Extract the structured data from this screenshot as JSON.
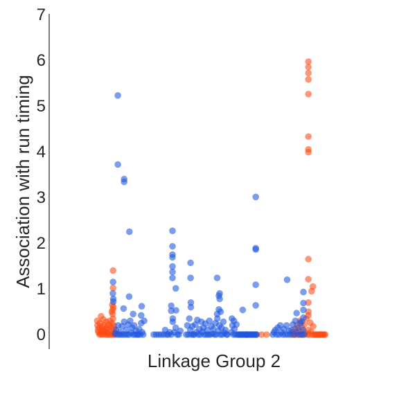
{
  "chart_data": {
    "type": "scatter",
    "xlabel": "Linkage Group 2",
    "ylabel": "Association with run timing",
    "ylim": [
      -0.35,
      7
    ],
    "yticks": [
      0,
      1,
      2,
      3,
      4,
      5,
      6,
      7
    ],
    "xlim": [
      0,
      100
    ],
    "grid": false,
    "legend": "none",
    "series": [
      {
        "color": "#ff4a12",
        "points": [
          [
            1.5,
            0.3
          ],
          [
            1.6,
            0.2
          ],
          [
            1.8,
            0.1
          ],
          [
            2.0,
            0.05
          ],
          [
            2.2,
            0.15
          ],
          [
            2.4,
            0.0
          ],
          [
            2.6,
            0.25
          ],
          [
            2.8,
            0.02
          ],
          [
            3.0,
            0.4
          ],
          [
            3.2,
            0.08
          ],
          [
            3.3,
            0.18
          ],
          [
            3.5,
            0.0
          ],
          [
            3.7,
            0.12
          ],
          [
            3.9,
            0.33
          ],
          [
            4.1,
            0.02
          ],
          [
            4.3,
            0.2
          ],
          [
            4.5,
            0.06
          ],
          [
            4.7,
            0.1
          ],
          [
            4.9,
            0.0
          ],
          [
            5.1,
            0.28
          ],
          [
            5.3,
            0.04
          ],
          [
            5.5,
            0.15
          ],
          [
            5.7,
            0.0
          ],
          [
            5.9,
            0.22
          ],
          [
            6.1,
            0.1
          ],
          [
            6.3,
            0.0
          ],
          [
            6.5,
            0.3
          ],
          [
            6.7,
            0.05
          ],
          [
            6.9,
            0.17
          ],
          [
            7.1,
            0.0
          ],
          [
            7.3,
            0.5
          ],
          [
            7.4,
            0.25
          ],
          [
            7.5,
            0.65
          ],
          [
            7.6,
            0.45
          ],
          [
            7.7,
            0.55
          ],
          [
            7.8,
            0.35
          ],
          [
            7.9,
            0.6
          ],
          [
            8.0,
            0.2
          ],
          [
            8.1,
            0.0
          ],
          [
            8.2,
            0.12
          ],
          [
            8.3,
            0.0
          ],
          [
            8.4,
            0.05
          ],
          [
            7.8,
            1.4
          ],
          [
            7.8,
            1.02
          ],
          [
            61.0,
            0.0
          ],
          [
            65.0,
            0.0
          ],
          [
            67.0,
            0.0
          ],
          [
            69.0,
            0.0
          ],
          [
            79.2,
            0.0
          ],
          [
            79.6,
            0.05
          ],
          [
            80.0,
            0.0
          ],
          [
            80.4,
            0.12
          ],
          [
            80.8,
            0.0
          ],
          [
            81.2,
            0.2
          ],
          [
            81.6,
            0.0
          ],
          [
            82.0,
            0.08
          ],
          [
            82.4,
            0.3
          ],
          [
            82.8,
            0.0
          ],
          [
            83.2,
            0.15
          ],
          [
            83.6,
            0.0
          ],
          [
            84.0,
            0.22
          ],
          [
            84.4,
            0.04
          ],
          [
            84.8,
            0.35
          ],
          [
            85.2,
            0.0
          ],
          [
            85.6,
            0.1
          ],
          [
            86.0,
            0.0
          ],
          [
            86.4,
            0.26
          ],
          [
            86.8,
            0.06
          ],
          [
            87.2,
            0.0
          ],
          [
            87.6,
            0.18
          ],
          [
            88.0,
            0.0
          ],
          [
            88.4,
            0.0
          ],
          [
            88.8,
            0.0
          ],
          [
            89.2,
            0.0
          ],
          [
            89.6,
            0.0
          ],
          [
            90.0,
            0.0
          ],
          [
            90.4,
            0.0
          ],
          [
            90.8,
            0.0
          ],
          [
            91.2,
            0.0
          ],
          [
            91.6,
            0.0
          ],
          [
            92.0,
            0.0
          ],
          [
            92.4,
            0.0
          ],
          [
            85.7,
            5.97
          ],
          [
            85.7,
            5.85
          ],
          [
            85.7,
            5.72
          ],
          [
            85.7,
            5.58
          ],
          [
            85.7,
            5.26
          ],
          [
            85.7,
            4.33
          ],
          [
            85.7,
            4.05
          ],
          [
            85.7,
            3.99
          ],
          [
            85.7,
            1.65
          ],
          [
            85.7,
            1.21
          ],
          [
            85.7,
            0.7
          ],
          [
            85.7,
            0.5
          ],
          [
            85.7,
            0.42
          ],
          [
            87.5,
            1.05
          ],
          [
            87.0,
            0.95
          ]
        ]
      },
      {
        "color": "#1d56e0",
        "points": [
          [
            9.7,
            5.23
          ],
          [
            9.7,
            3.72
          ],
          [
            12.2,
            3.4
          ],
          [
            12.2,
            3.34
          ],
          [
            14.3,
            2.25
          ],
          [
            31.5,
            2.27
          ],
          [
            31.5,
            1.93
          ],
          [
            31.5,
            1.75
          ],
          [
            31.5,
            1.69
          ],
          [
            31.5,
            1.49
          ],
          [
            31.5,
            1.37
          ],
          [
            31.5,
            1.24
          ],
          [
            32.8,
            1.01
          ],
          [
            38.7,
            1.57
          ],
          [
            38.7,
            1.24
          ],
          [
            49.3,
            1.24
          ],
          [
            50.3,
            0.9
          ],
          [
            50.3,
            0.78
          ],
          [
            50.0,
            0.85
          ],
          [
            64.7,
            3.01
          ],
          [
            64.7,
            1.89
          ],
          [
            64.7,
            1.86
          ],
          [
            64.7,
            1.09
          ],
          [
            64.7,
            0.64
          ],
          [
            77.2,
            1.2
          ],
          [
            83.7,
            0.93
          ],
          [
            83.7,
            0.69
          ],
          [
            83.7,
            0.54
          ],
          [
            7.8,
            1.15
          ],
          [
            7.9,
            0.78
          ],
          [
            7.9,
            0.72
          ],
          [
            7.7,
            0.9
          ],
          [
            12.0,
            0.57
          ],
          [
            14.2,
            0.83
          ],
          [
            15.8,
            0.45
          ],
          [
            19.2,
            0.62
          ],
          [
            19.0,
            0.42
          ],
          [
            31.0,
            0.63
          ],
          [
            31.0,
            0.52
          ],
          [
            32.9,
            0.53
          ],
          [
            31.6,
            0.35
          ],
          [
            38.8,
            0.7
          ],
          [
            38.8,
            0.6
          ],
          [
            49.3,
            0.45
          ],
          [
            50.0,
            0.55
          ],
          [
            50.7,
            0.5
          ],
          [
            59.5,
            0.54
          ],
          [
            56.0,
            0.3
          ],
          [
            55.2,
            0.35
          ],
          [
            81.0,
            0.47
          ],
          [
            83.7,
            0.37
          ],
          [
            83.0,
            0.28
          ],
          [
            8.6,
            0.02
          ],
          [
            9.0,
            0.1
          ],
          [
            9.4,
            0.0
          ],
          [
            9.8,
            0.2
          ],
          [
            10.2,
            0.0
          ],
          [
            10.6,
            0.05
          ],
          [
            11.0,
            0.0
          ],
          [
            11.4,
            0.18
          ],
          [
            11.8,
            0.0
          ],
          [
            12.2,
            0.28
          ],
          [
            12.6,
            0.0
          ],
          [
            13.0,
            0.1
          ],
          [
            13.4,
            0.0
          ],
          [
            13.8,
            0.22
          ],
          [
            14.2,
            0.0
          ],
          [
            14.6,
            0.3
          ],
          [
            15.0,
            0.04
          ],
          [
            15.4,
            0.15
          ],
          [
            15.8,
            0.0
          ],
          [
            16.2,
            0.2
          ],
          [
            16.6,
            0.0
          ],
          [
            17.0,
            0.08
          ],
          [
            17.4,
            0.0
          ],
          [
            17.8,
            0.0
          ],
          [
            18.2,
            0.12
          ],
          [
            18.6,
            0.0
          ],
          [
            19.0,
            0.25
          ],
          [
            19.4,
            0.05
          ],
          [
            19.8,
            0.0
          ],
          [
            20.2,
            0.3
          ],
          [
            24.0,
            0.0
          ],
          [
            25.0,
            0.0
          ],
          [
            26.0,
            0.0
          ],
          [
            27.0,
            0.0
          ],
          [
            28.0,
            0.0
          ],
          [
            28.6,
            0.1
          ],
          [
            29.2,
            0.0
          ],
          [
            29.8,
            0.0
          ],
          [
            30.4,
            0.05
          ],
          [
            31.0,
            0.0
          ],
          [
            31.6,
            0.28
          ],
          [
            32.2,
            0.05
          ],
          [
            32.8,
            0.15
          ],
          [
            33.4,
            0.0
          ],
          [
            34.0,
            0.0
          ],
          [
            34.6,
            0.08
          ],
          [
            37.0,
            0.0
          ],
          [
            37.4,
            0.2
          ],
          [
            37.8,
            0.0
          ],
          [
            38.2,
            0.35
          ],
          [
            38.6,
            0.1
          ],
          [
            39.0,
            0.0
          ],
          [
            39.4,
            0.18
          ],
          [
            39.8,
            0.0
          ],
          [
            40.2,
            0.0
          ],
          [
            40.6,
            0.22
          ],
          [
            41.0,
            0.05
          ],
          [
            41.4,
            0.32
          ],
          [
            41.8,
            0.0
          ],
          [
            42.2,
            0.12
          ],
          [
            42.6,
            0.0
          ],
          [
            43.0,
            0.28
          ],
          [
            43.4,
            0.06
          ],
          [
            43.8,
            0.15
          ],
          [
            44.2,
            0.0
          ],
          [
            44.6,
            0.24
          ],
          [
            45.0,
            0.0
          ],
          [
            45.4,
            0.1
          ],
          [
            45.8,
            0.0
          ],
          [
            46.2,
            0.3
          ],
          [
            46.6,
            0.0
          ],
          [
            47.0,
            0.18
          ],
          [
            47.4,
            0.02
          ],
          [
            47.8,
            0.12
          ],
          [
            48.2,
            0.0
          ],
          [
            48.6,
            0.25
          ],
          [
            49.0,
            0.0
          ],
          [
            49.4,
            0.35
          ],
          [
            49.8,
            0.08
          ],
          [
            50.2,
            0.2
          ],
          [
            50.6,
            0.0
          ],
          [
            51.0,
            0.15
          ],
          [
            51.4,
            0.0
          ],
          [
            51.8,
            0.28
          ],
          [
            52.2,
            0.04
          ],
          [
            52.6,
            0.1
          ],
          [
            53.0,
            0.0
          ],
          [
            53.4,
            0.0
          ],
          [
            55.0,
            0.05
          ],
          [
            55.4,
            0.2
          ],
          [
            55.8,
            0.0
          ],
          [
            56.2,
            0.12
          ],
          [
            56.6,
            0.0
          ],
          [
            57.0,
            0.22
          ],
          [
            57.4,
            0.0
          ],
          [
            57.8,
            0.0
          ],
          [
            58.2,
            0.0
          ],
          [
            58.6,
            0.0
          ],
          [
            59.0,
            0.0
          ],
          [
            59.4,
            0.0
          ],
          [
            59.8,
            0.0
          ],
          [
            60.2,
            0.0
          ],
          [
            60.6,
            0.0
          ],
          [
            61.0,
            0.0
          ],
          [
            61.4,
            0.0
          ],
          [
            61.8,
            0.0
          ],
          [
            62.2,
            0.0
          ],
          [
            62.6,
            0.0
          ],
          [
            63.0,
            0.0
          ],
          [
            63.4,
            0.0
          ],
          [
            63.8,
            0.0
          ],
          [
            64.2,
            0.0
          ],
          [
            64.6,
            0.0
          ],
          [
            65.0,
            0.0
          ],
          [
            71.5,
            0.0
          ],
          [
            72.0,
            0.05
          ],
          [
            72.5,
            0.1
          ],
          [
            73.0,
            0.0
          ],
          [
            73.5,
            0.15
          ],
          [
            74.0,
            0.0
          ],
          [
            74.5,
            0.2
          ],
          [
            75.0,
            0.05
          ],
          [
            75.5,
            0.0
          ],
          [
            76.0,
            0.12
          ],
          [
            76.5,
            0.0
          ],
          [
            77.0,
            0.2
          ],
          [
            77.5,
            0.0
          ],
          [
            78.0,
            0.08
          ],
          [
            78.5,
            0.0
          ],
          [
            79.0,
            0.1
          ],
          [
            79.5,
            0.22
          ],
          [
            80.0,
            0.0
          ],
          [
            80.5,
            0.3
          ],
          [
            81.0,
            0.05
          ],
          [
            81.5,
            0.15
          ],
          [
            82.0,
            0.0
          ],
          [
            82.5,
            0.25
          ],
          [
            83.0,
            0.0
          ],
          [
            83.5,
            0.1
          ],
          [
            84.0,
            0.0
          ]
        ]
      }
    ]
  }
}
